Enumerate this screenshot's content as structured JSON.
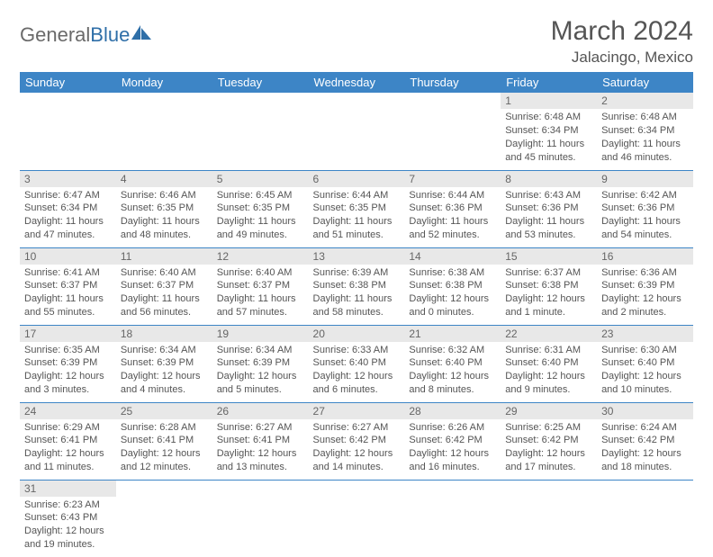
{
  "logo": {
    "text1": "General",
    "text2": "Blue"
  },
  "title": "March 2024",
  "location": "Jalacingo, Mexico",
  "colors": {
    "header_bg": "#3d85c6",
    "header_text": "#ffffff",
    "daynum_bg": "#e8e8e8",
    "border": "#3d85c6",
    "text": "#555555",
    "logo_gray": "#6a6a6a",
    "logo_blue": "#2f6fa8"
  },
  "day_headers": [
    "Sunday",
    "Monday",
    "Tuesday",
    "Wednesday",
    "Thursday",
    "Friday",
    "Saturday"
  ],
  "weeks": [
    [
      null,
      null,
      null,
      null,
      null,
      {
        "n": "1",
        "sunrise": "6:48 AM",
        "sunset": "6:34 PM",
        "daylight": "11 hours and 45 minutes."
      },
      {
        "n": "2",
        "sunrise": "6:48 AM",
        "sunset": "6:34 PM",
        "daylight": "11 hours and 46 minutes."
      }
    ],
    [
      {
        "n": "3",
        "sunrise": "6:47 AM",
        "sunset": "6:34 PM",
        "daylight": "11 hours and 47 minutes."
      },
      {
        "n": "4",
        "sunrise": "6:46 AM",
        "sunset": "6:35 PM",
        "daylight": "11 hours and 48 minutes."
      },
      {
        "n": "5",
        "sunrise": "6:45 AM",
        "sunset": "6:35 PM",
        "daylight": "11 hours and 49 minutes."
      },
      {
        "n": "6",
        "sunrise": "6:44 AM",
        "sunset": "6:35 PM",
        "daylight": "11 hours and 51 minutes."
      },
      {
        "n": "7",
        "sunrise": "6:44 AM",
        "sunset": "6:36 PM",
        "daylight": "11 hours and 52 minutes."
      },
      {
        "n": "8",
        "sunrise": "6:43 AM",
        "sunset": "6:36 PM",
        "daylight": "11 hours and 53 minutes."
      },
      {
        "n": "9",
        "sunrise": "6:42 AM",
        "sunset": "6:36 PM",
        "daylight": "11 hours and 54 minutes."
      }
    ],
    [
      {
        "n": "10",
        "sunrise": "6:41 AM",
        "sunset": "6:37 PM",
        "daylight": "11 hours and 55 minutes."
      },
      {
        "n": "11",
        "sunrise": "6:40 AM",
        "sunset": "6:37 PM",
        "daylight": "11 hours and 56 minutes."
      },
      {
        "n": "12",
        "sunrise": "6:40 AM",
        "sunset": "6:37 PM",
        "daylight": "11 hours and 57 minutes."
      },
      {
        "n": "13",
        "sunrise": "6:39 AM",
        "sunset": "6:38 PM",
        "daylight": "11 hours and 58 minutes."
      },
      {
        "n": "14",
        "sunrise": "6:38 AM",
        "sunset": "6:38 PM",
        "daylight": "12 hours and 0 minutes."
      },
      {
        "n": "15",
        "sunrise": "6:37 AM",
        "sunset": "6:38 PM",
        "daylight": "12 hours and 1 minute."
      },
      {
        "n": "16",
        "sunrise": "6:36 AM",
        "sunset": "6:39 PM",
        "daylight": "12 hours and 2 minutes."
      }
    ],
    [
      {
        "n": "17",
        "sunrise": "6:35 AM",
        "sunset": "6:39 PM",
        "daylight": "12 hours and 3 minutes."
      },
      {
        "n": "18",
        "sunrise": "6:34 AM",
        "sunset": "6:39 PM",
        "daylight": "12 hours and 4 minutes."
      },
      {
        "n": "19",
        "sunrise": "6:34 AM",
        "sunset": "6:39 PM",
        "daylight": "12 hours and 5 minutes."
      },
      {
        "n": "20",
        "sunrise": "6:33 AM",
        "sunset": "6:40 PM",
        "daylight": "12 hours and 6 minutes."
      },
      {
        "n": "21",
        "sunrise": "6:32 AM",
        "sunset": "6:40 PM",
        "daylight": "12 hours and 8 minutes."
      },
      {
        "n": "22",
        "sunrise": "6:31 AM",
        "sunset": "6:40 PM",
        "daylight": "12 hours and 9 minutes."
      },
      {
        "n": "23",
        "sunrise": "6:30 AM",
        "sunset": "6:40 PM",
        "daylight": "12 hours and 10 minutes."
      }
    ],
    [
      {
        "n": "24",
        "sunrise": "6:29 AM",
        "sunset": "6:41 PM",
        "daylight": "12 hours and 11 minutes."
      },
      {
        "n": "25",
        "sunrise": "6:28 AM",
        "sunset": "6:41 PM",
        "daylight": "12 hours and 12 minutes."
      },
      {
        "n": "26",
        "sunrise": "6:27 AM",
        "sunset": "6:41 PM",
        "daylight": "12 hours and 13 minutes."
      },
      {
        "n": "27",
        "sunrise": "6:27 AM",
        "sunset": "6:42 PM",
        "daylight": "12 hours and 14 minutes."
      },
      {
        "n": "28",
        "sunrise": "6:26 AM",
        "sunset": "6:42 PM",
        "daylight": "12 hours and 16 minutes."
      },
      {
        "n": "29",
        "sunrise": "6:25 AM",
        "sunset": "6:42 PM",
        "daylight": "12 hours and 17 minutes."
      },
      {
        "n": "30",
        "sunrise": "6:24 AM",
        "sunset": "6:42 PM",
        "daylight": "12 hours and 18 minutes."
      }
    ],
    [
      {
        "n": "31",
        "sunrise": "6:23 AM",
        "sunset": "6:43 PM",
        "daylight": "12 hours and 19 minutes."
      },
      null,
      null,
      null,
      null,
      null,
      null
    ]
  ],
  "labels": {
    "sunrise_prefix": "Sunrise: ",
    "sunset_prefix": "Sunset: ",
    "daylight_prefix": "Daylight: "
  }
}
